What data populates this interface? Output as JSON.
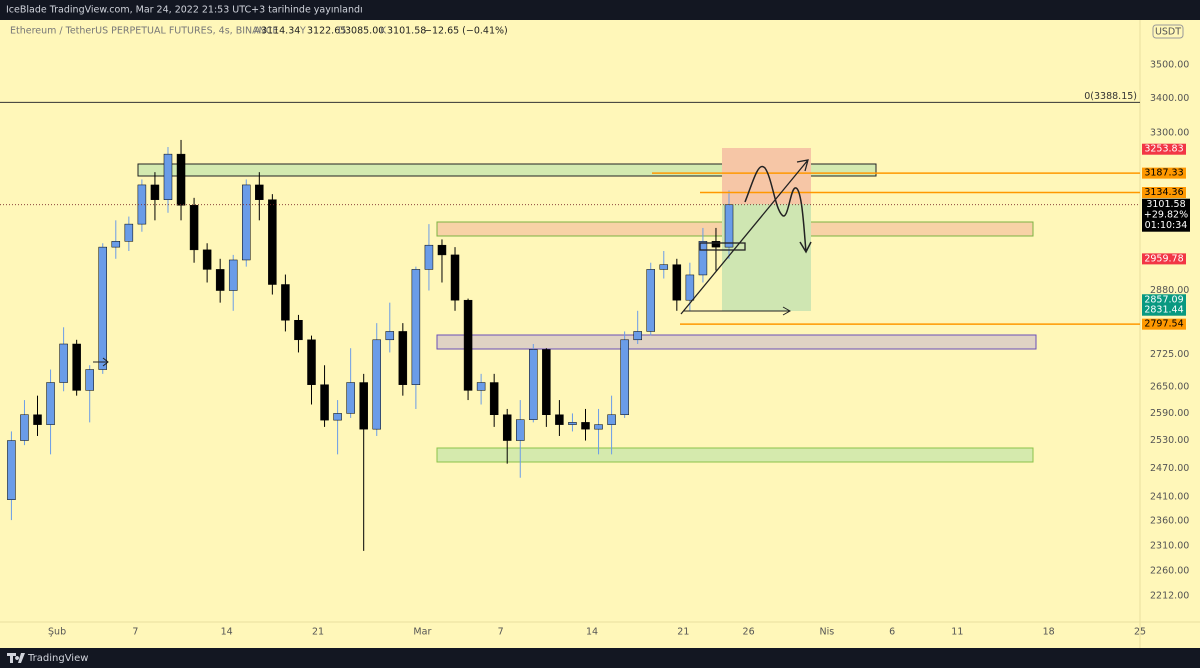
{
  "header": {
    "publisher": "IceBlade TradingView.com, Mar 24, 2022 21:53 UTC+3 tarihinde yayınlandı"
  },
  "footer": {
    "brand": "TradingView"
  },
  "chart_data": {
    "type": "candlestick",
    "title": "Ethereum / TetherUS PERPETUAL FUTURES, 4s, BINANCE",
    "legend": {
      "open_key": "A",
      "open": "3114.34",
      "high_key": "Y",
      "high": "3122.65",
      "low_key": "D",
      "low": "3085.00",
      "close_key": "K",
      "close": "3101.58",
      "change": "−12.65 (−0.41%)"
    },
    "currency": "USDT",
    "log_scale": true,
    "grid": false,
    "up_color": "#6a9ce8",
    "down_color": "#000000",
    "x": [
      "2022-01-28",
      "2022-01-29",
      "2022-01-30",
      "2022-01-31",
      "2022-02-01",
      "2022-02-02",
      "2022-02-03",
      "2022-02-04",
      "2022-02-05",
      "2022-02-06",
      "2022-02-07",
      "2022-02-08",
      "2022-02-09",
      "2022-02-10",
      "2022-02-11",
      "2022-02-12",
      "2022-02-13",
      "2022-02-14",
      "2022-02-15",
      "2022-02-16",
      "2022-02-17",
      "2022-02-18",
      "2022-02-19",
      "2022-02-20",
      "2022-02-21",
      "2022-02-22",
      "2022-02-23",
      "2022-02-24",
      "2022-02-25",
      "2022-02-26",
      "2022-02-27",
      "2022-02-28",
      "2022-03-01",
      "2022-03-02",
      "2022-03-03",
      "2022-03-04",
      "2022-03-05",
      "2022-03-06",
      "2022-03-07",
      "2022-03-08",
      "2022-03-09",
      "2022-03-10",
      "2022-03-11",
      "2022-03-12",
      "2022-03-13",
      "2022-03-14",
      "2022-03-15",
      "2022-03-16",
      "2022-03-17",
      "2022-03-18",
      "2022-03-19",
      "2022-03-20",
      "2022-03-21",
      "2022-03-22",
      "2022-03-23",
      "2022-03-24"
    ],
    "open": [
      2404,
      2530,
      2587,
      2565,
      2660,
      2750,
      2642,
      2690,
      2990,
      3005,
      3050,
      3155,
      3115,
      3240,
      3100,
      2983,
      2933,
      2880,
      2957,
      3155,
      3115,
      2895,
      2807,
      2760,
      2655,
      2575,
      2590,
      2660,
      2555,
      2760,
      2780,
      2655,
      2933,
      2995,
      2970,
      2856,
      2642,
      2660,
      2587,
      2530,
      2576,
      2737,
      2587,
      2565,
      2570,
      2555,
      2565,
      2587,
      2760,
      2780,
      2933,
      2945,
      2856,
      2919,
      3005,
      2990
    ],
    "high": [
      2550,
      2620,
      2630,
      2690,
      2790,
      2760,
      2700,
      3000,
      3060,
      3070,
      3170,
      3190,
      3260,
      3280,
      3120,
      3000,
      2960,
      2970,
      3170,
      3190,
      3130,
      2920,
      2820,
      2770,
      2700,
      2620,
      2740,
      2680,
      2800,
      2850,
      2800,
      2940,
      3050,
      3010,
      2990,
      2860,
      2680,
      2680,
      2600,
      2620,
      2750,
      2740,
      2620,
      2590,
      2600,
      2600,
      2630,
      2780,
      2830,
      2950,
      2980,
      2960,
      2950,
      3040,
      3040,
      3140
    ],
    "low": [
      2362,
      2520,
      2540,
      2500,
      2640,
      2630,
      2570,
      2680,
      2960,
      2980,
      3030,
      3060,
      3080,
      3060,
      2950,
      2900,
      2850,
      2830,
      2940,
      3060,
      2870,
      2780,
      2730,
      2610,
      2560,
      2500,
      2580,
      2300,
      2540,
      2730,
      2630,
      2600,
      2880,
      2900,
      2830,
      2620,
      2610,
      2560,
      2480,
      2450,
      2570,
      2560,
      2540,
      2550,
      2530,
      2500,
      2500,
      2580,
      2750,
      2770,
      2910,
      2830,
      2830,
      2900,
      2930,
      2960
    ],
    "close": [
      2530,
      2587,
      2565,
      2660,
      2750,
      2642,
      2690,
      2990,
      3005,
      3050,
      3155,
      3115,
      3240,
      3100,
      2983,
      2933,
      2880,
      2957,
      3155,
      3115,
      2895,
      2807,
      2760,
      2655,
      2575,
      2590,
      2660,
      2555,
      2760,
      2780,
      2655,
      2933,
      2995,
      2970,
      2856,
      2642,
      2660,
      2587,
      2530,
      2576,
      2737,
      2587,
      2565,
      2570,
      2555,
      2565,
      2587,
      2760,
      2780,
      2933,
      2945,
      2856,
      2919,
      3005,
      2990,
      3101.58
    ],
    "xlim": [
      "2022-01-27T15:00:00Z",
      "2022-04-25"
    ],
    "xticks": [
      {
        "value": "2022-02-01",
        "label": "Şub"
      },
      {
        "value": "2022-02-07",
        "label": "7"
      },
      {
        "value": "2022-02-14",
        "label": "14"
      },
      {
        "value": "2022-02-21",
        "label": "21"
      },
      {
        "value": "2022-03-01",
        "label": "Mar"
      },
      {
        "value": "2022-03-07",
        "label": "7"
      },
      {
        "value": "2022-03-14",
        "label": "14"
      },
      {
        "value": "2022-03-21",
        "label": "21"
      },
      {
        "value": "2022-03-26",
        "label": "26"
      },
      {
        "value": "2022-04-01",
        "label": "Nis"
      },
      {
        "value": "2022-04-06",
        "label": "6"
      },
      {
        "value": "2022-04-11",
        "label": "11"
      },
      {
        "value": "2022-04-18",
        "label": "18"
      },
      {
        "value": "2022-04-25",
        "label": "25"
      }
    ],
    "ylim": [
      2163,
      3638
    ],
    "yticks": [
      {
        "value": 3500,
        "label": "3500.00"
      },
      {
        "value": 3400,
        "label": "3400.00"
      },
      {
        "value": 3300,
        "label": "3300.00"
      },
      {
        "value": 2880,
        "label": "2880.00"
      },
      {
        "value": 2725,
        "label": "2725.00"
      },
      {
        "value": 2650,
        "label": "2650.00"
      },
      {
        "value": 2590,
        "label": "2590.00"
      },
      {
        "value": 2530,
        "label": "2530.00"
      },
      {
        "value": 2470,
        "label": "2470.00"
      },
      {
        "value": 2410,
        "label": "2410.00"
      },
      {
        "value": 2360,
        "label": "2360.00"
      },
      {
        "value": 2310,
        "label": "2310.00"
      },
      {
        "value": 2260,
        "label": "2260.00"
      },
      {
        "value": 2212,
        "label": "2212.00"
      }
    ],
    "fib_level": {
      "value": 3388.15,
      "label": "0(3388.15)"
    },
    "price_labels": [
      {
        "value": 3253.83,
        "color": "#f23645",
        "text_color": "#ffffff"
      },
      {
        "value": 3187.33,
        "color": "#ff9800",
        "text_color": "#000000"
      },
      {
        "value": 3134.36,
        "color": "#ff9800",
        "text_color": "#000000"
      },
      {
        "value": 3101.58,
        "color": "#000000",
        "text_color": "#ffffff",
        "change": "+29.82%",
        "countdown": "01:10:34"
      },
      {
        "value": 2959.78,
        "color": "#f23645",
        "text_color": "#ffffff"
      },
      {
        "value": 2857.09,
        "color": "#089981",
        "text_color": "#ffffff"
      },
      {
        "value": 2831.44,
        "color": "#089981",
        "text_color": "#ffffff"
      },
      {
        "value": 2797.54,
        "color": "#ff9800",
        "text_color": "#000000"
      }
    ]
  }
}
